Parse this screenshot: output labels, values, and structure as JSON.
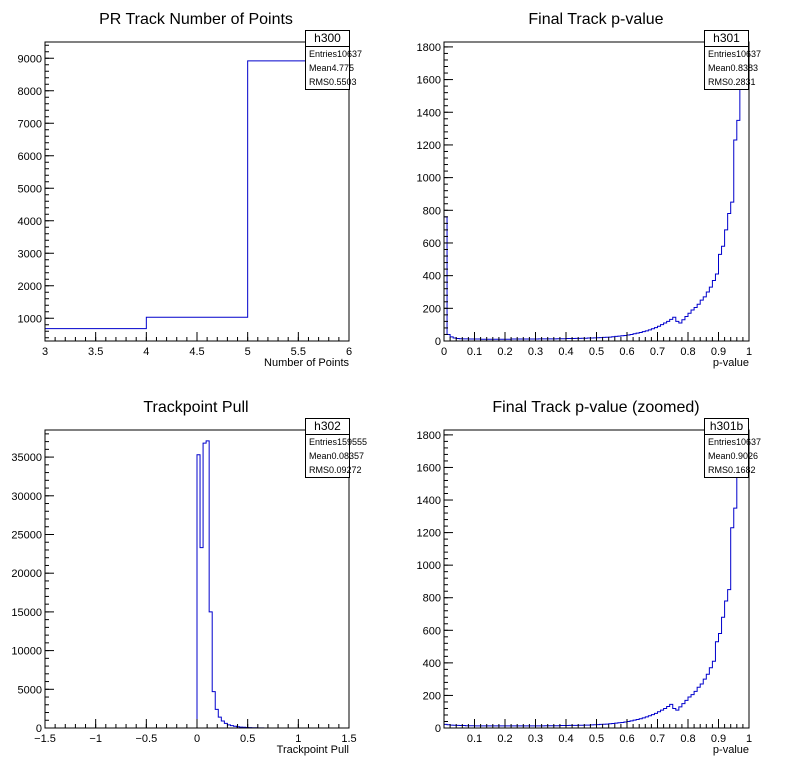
{
  "chart_data": [
    {
      "type": "histogram",
      "title": "PR Track Number of Points",
      "xlabel": "Number of Points",
      "ylabel": "",
      "xlim": [
        3,
        6
      ],
      "ylim": [
        300,
        9500
      ],
      "x_ticks": [
        "3",
        "3.5",
        "4",
        "4.5",
        "5",
        "5.5",
        "6"
      ],
      "y_ticks": [
        "1000",
        "2000",
        "3000",
        "4000",
        "5000",
        "6000",
        "7000",
        "8000",
        "9000"
      ],
      "bin_edges": [
        3,
        4,
        5,
        6
      ],
      "values": [
        680,
        1030,
        8920
      ],
      "stats": {
        "name": "h300",
        "rows": [
          {
            "label": "Entries",
            "value": "10637"
          },
          {
            "label": "Mean",
            "value": "4.775"
          },
          {
            "label": "RMS",
            "value": "0.5503"
          }
        ]
      }
    },
    {
      "type": "histogram",
      "title": "Final Track p-value",
      "xlabel": "p-value",
      "ylabel": "",
      "xlim": [
        0,
        1
      ],
      "ylim": [
        0,
        1830
      ],
      "x_ticks": [
        "0",
        "0.1",
        "0.2",
        "0.3",
        "0.4",
        "0.5",
        "0.6",
        "0.7",
        "0.8",
        "0.9",
        "1"
      ],
      "y_ticks": [
        "0",
        "200",
        "400",
        "600",
        "800",
        "1000",
        "1200",
        "1400",
        "1600",
        "1800"
      ],
      "bin_edges_range": [
        0,
        1
      ],
      "values": [
        760,
        40,
        25,
        18,
        15,
        14,
        13,
        13,
        12,
        12,
        12,
        12,
        11,
        11,
        11,
        11,
        11,
        11,
        11,
        11,
        11,
        11,
        12,
        12,
        12,
        12,
        12,
        12,
        12,
        12,
        12,
        13,
        13,
        13,
        13,
        13,
        13,
        14,
        14,
        14,
        15,
        15,
        15,
        16,
        16,
        17,
        17,
        18,
        18,
        19,
        20,
        21,
        22,
        23,
        24,
        26,
        28,
        30,
        32,
        34,
        37,
        40,
        44,
        48,
        52,
        57,
        62,
        68,
        75,
        82,
        90,
        100,
        110,
        120,
        132,
        145,
        120,
        110,
        130,
        150,
        170,
        190,
        205,
        225,
        250,
        270,
        300,
        330,
        370,
        410,
        530,
        580,
        680,
        780,
        850,
        1230,
        1350,
        1550,
        1620,
        1800
      ],
      "stats": {
        "name": "h301",
        "rows": [
          {
            "label": "Entries",
            "value": "10637"
          },
          {
            "label": "Mean",
            "value": "0.8383"
          },
          {
            "label": "RMS",
            "value": "0.2831"
          }
        ]
      }
    },
    {
      "type": "histogram",
      "title": "Trackpoint Pull",
      "xlabel": "Trackpoint Pull",
      "ylabel": "",
      "xlim": [
        -1.5,
        1.5
      ],
      "ylim": [
        0,
        38500
      ],
      "x_ticks": [
        "−1.5",
        "−1",
        "−0.5",
        "0",
        "0.5",
        "1",
        "1.5"
      ],
      "y_ticks": [
        "0",
        "5000",
        "10000",
        "15000",
        "20000",
        "25000",
        "30000",
        "35000"
      ],
      "bin_edges_range": [
        -1.5,
        1.5
      ],
      "values": [
        0,
        0,
        0,
        0,
        0,
        0,
        0,
        0,
        0,
        0,
        0,
        0,
        0,
        0,
        0,
        0,
        0,
        0,
        0,
        0,
        0,
        0,
        0,
        0,
        0,
        0,
        0,
        0,
        0,
        0,
        0,
        0,
        0,
        0,
        0,
        0,
        0,
        0,
        0,
        0,
        0,
        0,
        0,
        0,
        0,
        0,
        0,
        0,
        0,
        0,
        35300,
        23300,
        36800,
        37100,
        15000,
        4700,
        2400,
        1400,
        900,
        600,
        400,
        300,
        220,
        160,
        120,
        90,
        70,
        50,
        40,
        30,
        20,
        10,
        0,
        0,
        0,
        0,
        0,
        0,
        0,
        0,
        0,
        0,
        0,
        0,
        0,
        0,
        0,
        0,
        0,
        0,
        0,
        0,
        0,
        0,
        0,
        0,
        0,
        0,
        0,
        0
      ],
      "stats": {
        "name": "h302",
        "rows": [
          {
            "label": "Entries",
            "value": "159555"
          },
          {
            "label": "Mean",
            "value": "0.08357"
          },
          {
            "label": "RMS",
            "value": "0.09272"
          }
        ]
      }
    },
    {
      "type": "histogram",
      "title": "Final Track p-value (zoomed)",
      "xlabel": "p-value",
      "ylabel": "",
      "xlim": [
        0,
        1
      ],
      "ylim": [
        0,
        1830
      ],
      "x_ticks": [
        "0.1",
        "0.2",
        "0.3",
        "0.4",
        "0.5",
        "0.6",
        "0.7",
        "0.8",
        "0.9",
        "1"
      ],
      "y_ticks": [
        "0",
        "200",
        "400",
        "600",
        "800",
        "1000",
        "1200",
        "1400",
        "1600",
        "1800"
      ],
      "bin_edges_range": [
        0,
        1
      ],
      "values": [
        22,
        20,
        18,
        17,
        16,
        15,
        15,
        14,
        14,
        14,
        13,
        13,
        13,
        13,
        13,
        13,
        13,
        13,
        13,
        13,
        13,
        13,
        13,
        13,
        13,
        13,
        13,
        13,
        13,
        13,
        13,
        13,
        13,
        14,
        14,
        14,
        14,
        14,
        15,
        15,
        15,
        16,
        16,
        16,
        17,
        17,
        18,
        18,
        19,
        20,
        21,
        22,
        23,
        24,
        26,
        28,
        30,
        32,
        34,
        37,
        40,
        44,
        48,
        52,
        57,
        62,
        68,
        75,
        82,
        90,
        100,
        110,
        120,
        132,
        145,
        120,
        110,
        130,
        150,
        170,
        190,
        205,
        225,
        250,
        270,
        300,
        330,
        370,
        410,
        530,
        580,
        680,
        780,
        850,
        1230,
        1350,
        1550,
        1620,
        1800,
        1800
      ],
      "stats": {
        "name": "h301b",
        "rows": [
          {
            "label": "Entries",
            "value": "10637"
          },
          {
            "label": "Mean",
            "value": "0.9026"
          },
          {
            "label": "RMS",
            "value": "0.1682"
          }
        ]
      }
    }
  ],
  "colors": {
    "line": "#0000cc",
    "axis": "#000000",
    "background": "#ffffff"
  }
}
